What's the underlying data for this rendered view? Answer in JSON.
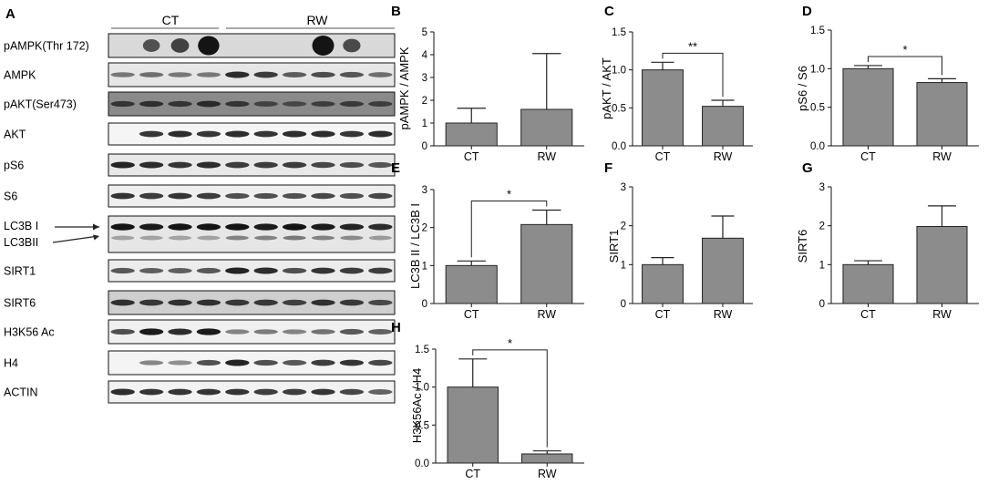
{
  "figure": {
    "panel_a": {
      "letter": "A",
      "groups": [
        "CT",
        "RW"
      ],
      "lane_count": 10,
      "ct_lanes": 4,
      "band_color": "#141414",
      "membrane_color": "#f2f2f2",
      "rows": [
        {
          "label": "pAMPK(Thr 172)",
          "intensity": [
            0.0,
            0.55,
            0.65,
            0.95,
            0.0,
            0.0,
            0.0,
            1.0,
            0.6,
            0.0
          ],
          "bg": "#d9d9d9"
        },
        {
          "label": "AMPK",
          "intensity": [
            0.35,
            0.4,
            0.35,
            0.35,
            0.8,
            0.7,
            0.5,
            0.6,
            0.55,
            0.4
          ],
          "bg": "#e6e6e6"
        },
        {
          "label": "pAKT(Ser473)",
          "intensity": [
            0.6,
            0.65,
            0.6,
            0.7,
            0.6,
            0.45,
            0.4,
            0.5,
            0.55,
            0.5
          ],
          "bg": "#8a8a8a"
        },
        {
          "label": "AKT",
          "intensity": [
            0.0,
            0.75,
            0.8,
            0.75,
            0.8,
            0.75,
            0.8,
            0.8,
            0.75,
            0.8
          ],
          "bg": "#f5f5f5"
        },
        {
          "label": "pS6",
          "intensity": [
            0.85,
            0.8,
            0.75,
            0.8,
            0.7,
            0.7,
            0.7,
            0.65,
            0.6,
            0.55
          ],
          "bg": "#e8e8e8"
        },
        {
          "label": "S6",
          "intensity": [
            0.75,
            0.7,
            0.75,
            0.7,
            0.6,
            0.6,
            0.6,
            0.65,
            0.6,
            0.65
          ],
          "bg": "#efefef"
        },
        {
          "label": "LC3B I",
          "label2": "LC3BII",
          "intensity": [
            0.95,
            0.9,
            0.95,
            0.95,
            0.95,
            0.9,
            0.95,
            0.9,
            0.85,
            0.8
          ],
          "intensity2": [
            0.15,
            0.15,
            0.15,
            0.15,
            0.35,
            0.35,
            0.4,
            0.35,
            0.3,
            0.2
          ],
          "bg": "#e6e6e6"
        },
        {
          "label": "SIRT1",
          "intensity": [
            0.55,
            0.5,
            0.5,
            0.55,
            0.85,
            0.8,
            0.6,
            0.75,
            0.7,
            0.7
          ],
          "bg": "#ececec"
        },
        {
          "label": "SIRT6",
          "intensity": [
            0.75,
            0.7,
            0.75,
            0.75,
            0.7,
            0.7,
            0.65,
            0.75,
            0.7,
            0.6
          ],
          "bg": "#cfcfcf"
        },
        {
          "label": "H3K56 Ac",
          "intensity": [
            0.6,
            0.9,
            0.8,
            0.9,
            0.3,
            0.35,
            0.3,
            0.4,
            0.55,
            0.5
          ],
          "bg": "#f0f0f0"
        },
        {
          "label": "H4",
          "intensity": [
            0.0,
            0.3,
            0.25,
            0.6,
            0.85,
            0.6,
            0.55,
            0.7,
            0.75,
            0.65
          ],
          "bg": "#f4f4f4"
        },
        {
          "label": "ACTIN",
          "intensity": [
            0.8,
            0.75,
            0.75,
            0.75,
            0.75,
            0.7,
            0.7,
            0.75,
            0.65,
            0.5
          ],
          "bg": "#f2f2f2"
        }
      ]
    },
    "bar_color": "#8c8c8c"
  },
  "chart_data": [
    {
      "id": "B",
      "type": "bar",
      "categories": [
        "CT",
        "RW"
      ],
      "values": [
        1.0,
        1.6
      ],
      "errors": [
        0.65,
        2.45
      ],
      "ylabel": "pAMPK / AMPK",
      "ylim": [
        0,
        5
      ],
      "ticks": [
        "0",
        "1",
        "2",
        "3",
        "4",
        "5"
      ],
      "significance": ""
    },
    {
      "id": "C",
      "type": "bar",
      "categories": [
        "CT",
        "RW"
      ],
      "values": [
        1.0,
        0.52
      ],
      "errors": [
        0.1,
        0.08
      ],
      "ylabel": "pAKT / AKT",
      "ylim": [
        0,
        1.5
      ],
      "ticks": [
        "0.0",
        "0.5",
        "1.0",
        "1.5"
      ],
      "significance": "**"
    },
    {
      "id": "D",
      "type": "bar",
      "categories": [
        "CT",
        "RW"
      ],
      "values": [
        1.0,
        0.82
      ],
      "errors": [
        0.04,
        0.05
      ],
      "ylabel": "pS6 / S6",
      "ylim": [
        0,
        1.5
      ],
      "ticks": [
        "0.0",
        "0.5",
        "1.0",
        "1.5"
      ],
      "significance": "*"
    },
    {
      "id": "E",
      "type": "bar",
      "categories": [
        "CT",
        "RW"
      ],
      "values": [
        1.0,
        2.08
      ],
      "errors": [
        0.12,
        0.38
      ],
      "ylabel": "LC3B II / LC3B I",
      "ylim": [
        0,
        3
      ],
      "ticks": [
        "0",
        "1",
        "2",
        "3"
      ],
      "significance": "*"
    },
    {
      "id": "F",
      "type": "bar",
      "categories": [
        "CT",
        "RW"
      ],
      "values": [
        1.0,
        1.68
      ],
      "errors": [
        0.18,
        0.57
      ],
      "ylabel": "SIRT1",
      "ylim": [
        0,
        3
      ],
      "ticks": [
        "0",
        "1",
        "2",
        "3"
      ],
      "significance": ""
    },
    {
      "id": "G",
      "type": "bar",
      "categories": [
        "CT",
        "RW"
      ],
      "values": [
        1.0,
        1.98
      ],
      "errors": [
        0.1,
        0.53
      ],
      "ylabel": "SIRT6",
      "ylim": [
        0,
        3
      ],
      "ticks": [
        "0",
        "1",
        "2",
        "3"
      ],
      "significance": ""
    },
    {
      "id": "H",
      "type": "bar",
      "categories": [
        "CT",
        "RW"
      ],
      "values": [
        1.0,
        0.12
      ],
      "errors": [
        0.37,
        0.04
      ],
      "ylabel": "H3K56Ac / H4",
      "ylim": [
        0,
        1.5
      ],
      "ticks": [
        "0.0",
        "0.5",
        "1.0",
        "1.5"
      ],
      "significance": "*"
    }
  ]
}
